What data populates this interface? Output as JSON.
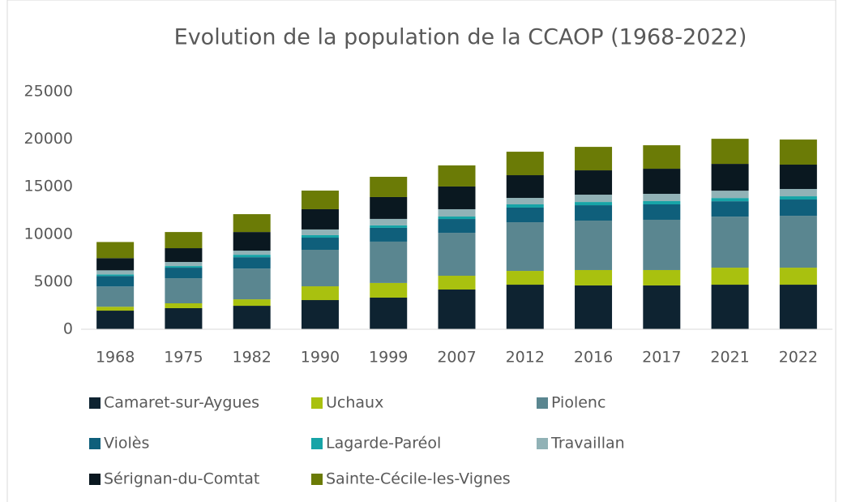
{
  "chart_data": {
    "type": "stacked_bar",
    "title": "Evolution de la population de la CCAOP (1968-2022)",
    "categories": [
      "1968",
      "1975",
      "1982",
      "1990",
      "1999",
      "2007",
      "2012",
      "2016",
      "2017",
      "2021",
      "2022"
    ],
    "series": [
      {
        "name": "Camaret-sur-Aygues",
        "color": "#0e2331",
        "values": [
          1960,
          2220,
          2470,
          3070,
          3330,
          4180,
          4690,
          4610,
          4610,
          4690,
          4690
        ]
      },
      {
        "name": "Uchaux",
        "color": "#a9c10f",
        "values": [
          410,
          510,
          680,
          1450,
          1540,
          1450,
          1450,
          1620,
          1620,
          1790,
          1790
        ]
      },
      {
        "name": "Piolenc",
        "color": "#5a8690",
        "values": [
          2130,
          2640,
          3240,
          3840,
          4350,
          4520,
          5120,
          5200,
          5290,
          5370,
          5460
        ]
      },
      {
        "name": "Violès",
        "color": "#0f5f7b",
        "values": [
          1100,
          1110,
          1190,
          1280,
          1450,
          1450,
          1540,
          1620,
          1620,
          1620,
          1710
        ]
      },
      {
        "name": "Lagarde-Paréol",
        "color": "#17a4a7",
        "values": [
          170,
          170,
          260,
          260,
          260,
          260,
          340,
          340,
          340,
          340,
          340
        ]
      },
      {
        "name": "Travaillan",
        "color": "#91b2b6",
        "values": [
          430,
          430,
          430,
          600,
          680,
          770,
          680,
          770,
          770,
          770,
          770
        ]
      },
      {
        "name": "Sérignan-du-Comtat",
        "color": "#0a1820",
        "values": [
          1280,
          1450,
          1960,
          2130,
          2300,
          2390,
          2390,
          2560,
          2640,
          2820,
          2560
        ]
      },
      {
        "name": "Sainte-Cécile-les-Vignes",
        "color": "#6b7b06",
        "values": [
          1700,
          1700,
          1880,
          1960,
          2130,
          2220,
          2470,
          2470,
          2470,
          2640,
          2640
        ]
      }
    ],
    "ylim": [
      0,
      25000
    ],
    "yticks": [
      0,
      5000,
      10000,
      15000,
      20000,
      25000
    ],
    "grid": false
  }
}
